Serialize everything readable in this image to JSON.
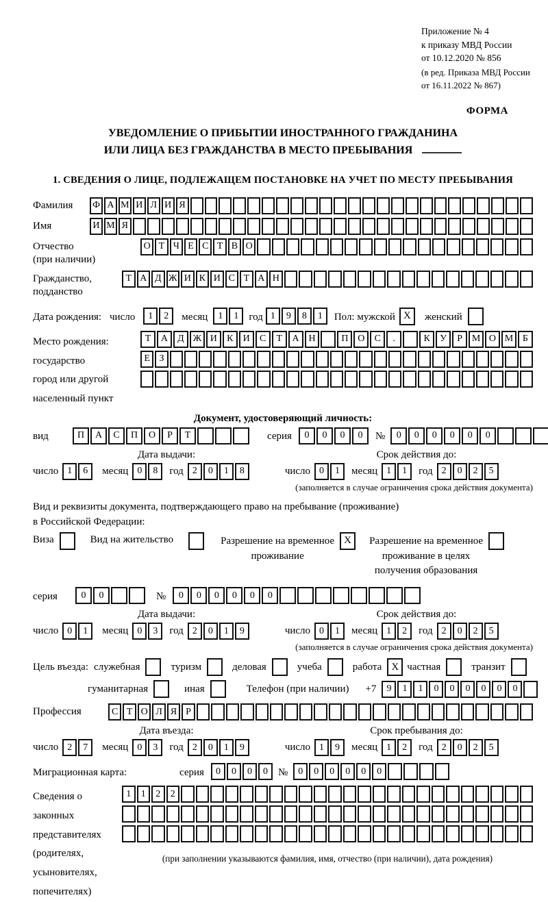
{
  "header": {
    "appendix_lines": [
      "Приложение № 4",
      "к приказу МВД России",
      "от 10.12.2020 № 856"
    ],
    "amendment_lines": [
      "(в ред. Приказа МВД России",
      "от 16.11.2022 № 867)"
    ],
    "form_label": "ФОРМА"
  },
  "title": {
    "line1": "УВЕДОМЛЕНИЕ О ПРИБЫТИИ ИНОСТРАННОГО ГРАЖДАНИНА",
    "line2": "ИЛИ ЛИЦА БЕЗ ГРАЖДАНСТВА В МЕСТО ПРЕБЫВАНИЯ"
  },
  "section1_heading": "1. СВЕДЕНИЯ О ЛИЦЕ, ПОДЛЕЖАЩЕМ ПОСТАНОВКЕ НА УЧЕТ ПО МЕСТУ ПРЕБЫВАНИЯ",
  "labels": {
    "day": "число",
    "month": "месяц",
    "year": "год",
    "series": "серия",
    "number": "№"
  },
  "rows": {
    "surname": {
      "label": "Фамилия",
      "value": "ФАМИЛИЯ",
      "cells": 31
    },
    "given_name": {
      "label": "Имя",
      "value": "ИМЯ",
      "cells": 31
    },
    "patronymic": {
      "label_line1": "Отчество",
      "label_line2": "(при наличии)",
      "value": "ОТЧЕСТВО",
      "cells": 27
    },
    "citizenship": {
      "label_line1": "Гражданство,",
      "label_line2": "подданство",
      "value": "ТАДЖИКИСТАН",
      "cells": 28
    },
    "profession": {
      "label": "Профессия",
      "value": "СТОЛЯР",
      "cells": 29
    }
  },
  "birth_date": {
    "label": "Дата рождения:",
    "day": "12",
    "month": "11",
    "year": "1981"
  },
  "sex": {
    "label": "Пол: мужской",
    "male_mark": "X",
    "female_label": "женский",
    "female_mark": ""
  },
  "birth_place": {
    "label_lines": [
      "Место рождения:",
      "государство",
      "город или другой",
      "населенный пункт"
    ],
    "row1": {
      "value": "ТАДЖИКИСТАН ПОС. КУРМОМБ",
      "cells": 24
    },
    "row2": {
      "value": "ЕЗ",
      "cells": 27
    },
    "row3": {
      "value": "",
      "cells": 27
    }
  },
  "identity_doc": {
    "heading": "Документ, удостоверяющий личность:",
    "kind_label": "вид",
    "kind": {
      "value": "ПАСПОРТ",
      "cells": 10
    },
    "series": {
      "value": "0000",
      "cells": 4
    },
    "number": {
      "value": "000000",
      "cells": 10
    },
    "issue_heading": "Дата выдачи:",
    "issue": {
      "day": "16",
      "month": "08",
      "year": "2018"
    },
    "valid_heading": "Срок действия до:",
    "valid": {
      "day": "01",
      "month": "11",
      "year": "2025"
    },
    "note": "(заполняется в случае ограничения срока действия документа)"
  },
  "residence_doc": {
    "intro_line1": "Вид и реквизиты документа, подтверждающего право на пребывание (проживание)",
    "intro_line2": "в Российской Федерации:",
    "options": [
      {
        "label": "Виза",
        "mark": ""
      },
      {
        "label": "Вид на жительство",
        "mark": ""
      },
      {
        "label1": "Разрешение на временное",
        "label2": "проживание",
        "mark": "X"
      },
      {
        "label1": "Разрешение на временное",
        "label2": "проживание в целях",
        "label3": "получения образования",
        "mark": ""
      }
    ],
    "series": {
      "value": "00",
      "cells": 4
    },
    "number": {
      "value": "000000",
      "cells": 14
    },
    "issue_heading": "Дата выдачи:",
    "issue": {
      "day": "01",
      "month": "03",
      "year": "2019"
    },
    "valid_heading": "Срок действия до:",
    "valid": {
      "day": "01",
      "month": "12",
      "year": "2025"
    },
    "note": "(заполняется в случае ограничения срока действия документа)"
  },
  "purpose": {
    "label": "Цель въезда:",
    "options_row1": [
      {
        "label": "служебная",
        "mark": ""
      },
      {
        "label": "туризм",
        "mark": ""
      },
      {
        "label": "деловая",
        "mark": ""
      },
      {
        "label": "учеба",
        "mark": ""
      },
      {
        "label": "работа",
        "mark": "X"
      },
      {
        "label": "частная",
        "mark": ""
      },
      {
        "label": "транзит",
        "mark": ""
      }
    ],
    "options_row2": [
      {
        "label": "гуманитарная",
        "mark": ""
      },
      {
        "label": "иная",
        "mark": ""
      }
    ],
    "phone_label": "Телефон (при наличии)",
    "phone_prefix": "+7",
    "phone": {
      "value": "911000000",
      "cells": 10
    }
  },
  "entry": {
    "issue_heading": "Дата въезда:",
    "issue": {
      "day": "27",
      "month": "03",
      "year": "2019"
    },
    "until_heading": "Срок пребывания до:",
    "until": {
      "day": "19",
      "month": "12",
      "year": "2025"
    }
  },
  "migration_card": {
    "label": "Миграционная карта:",
    "series": {
      "value": "0000",
      "cells": 4
    },
    "number": {
      "value": "000000",
      "cells": 10
    }
  },
  "representatives": {
    "label_lines": [
      "Сведения о",
      "законных",
      "представителях",
      "(родителях,",
      "усыновителях,",
      "попечителях)"
    ],
    "row1": {
      "value": "1122",
      "cells": 28
    },
    "row2": {
      "value": "",
      "cells": 28
    },
    "row3": {
      "value": "",
      "cells": 28
    },
    "note": "(при заполнении указываются фамилия, имя, отчество (при наличии), дата рождения)"
  }
}
